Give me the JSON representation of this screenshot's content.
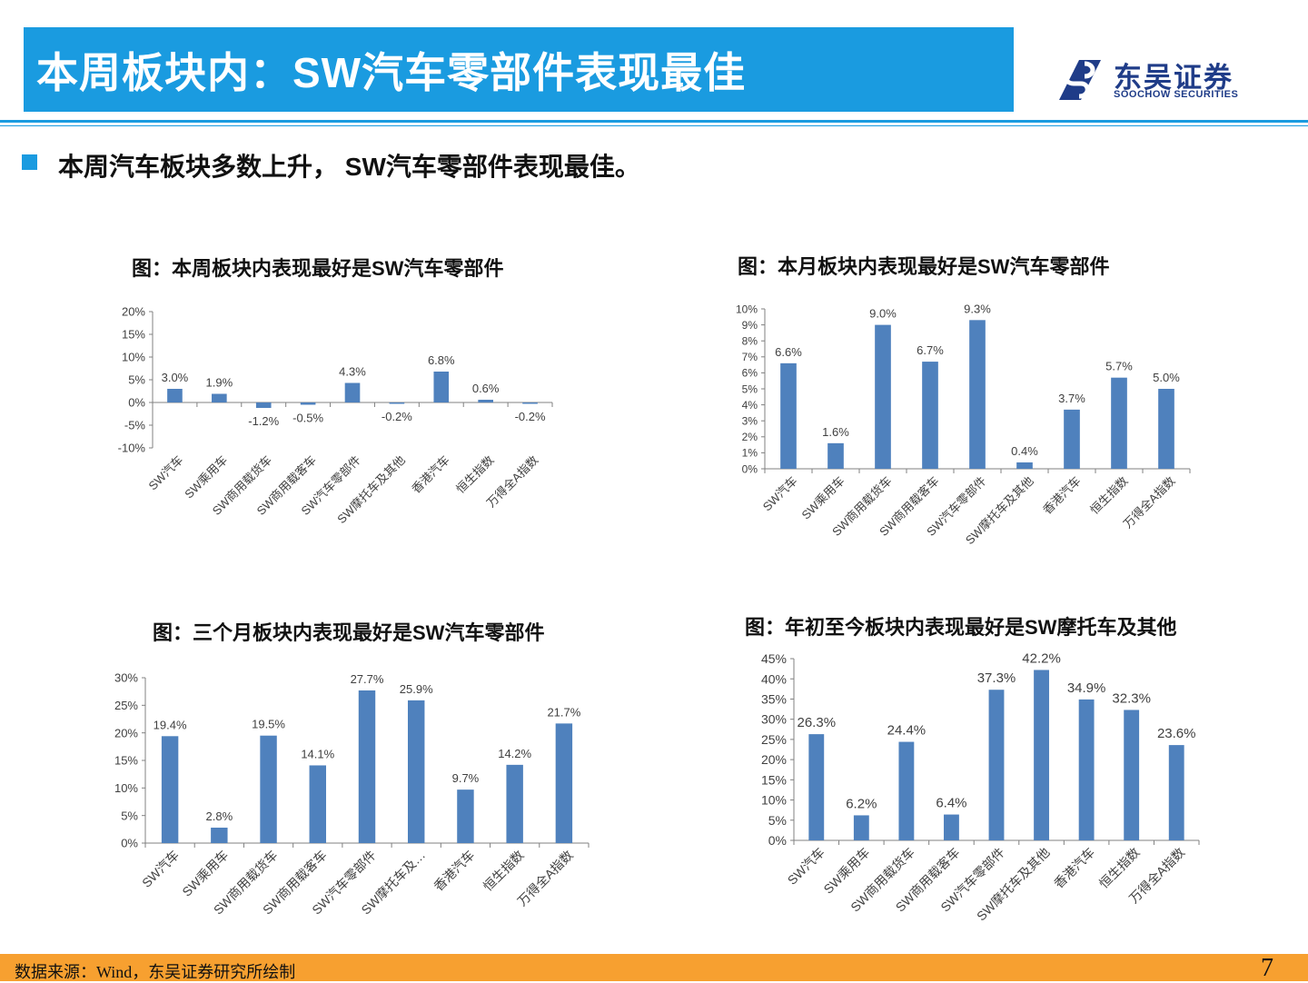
{
  "header": {
    "title": "本周板块内：SW汽车零部件表现最佳"
  },
  "logo": {
    "cn": "东吴证券",
    "en": "SOOCHOW SECURITIES"
  },
  "bullet": "本周汽车板块多数上升， SW汽车零部件表现最佳。",
  "colors": {
    "bar": "#4f81bd",
    "accent": "#1a9be0",
    "footer": "#f7a030"
  },
  "chart_data": [
    {
      "type": "bar",
      "title": "图：本周板块内表现最好是SW汽车零部件",
      "categories": [
        "SW汽车",
        "SW乘用车",
        "SW商用载货车",
        "SW商用载客车",
        "SW汽车零部件",
        "SW摩托车及其他",
        "香港汽车",
        "恒生指数",
        "万得全A指数"
      ],
      "values": [
        3.0,
        1.9,
        -1.2,
        -0.5,
        4.3,
        -0.2,
        6.8,
        0.6,
        -0.2
      ],
      "data_labels": [
        "3.0%",
        "1.9%",
        "-1.2%",
        "-0.5%",
        "4.3%",
        "-0.2%",
        "6.8%",
        "0.6%",
        "-0.2%"
      ],
      "ylim": [
        -10,
        20
      ],
      "yticks": [
        -10,
        -5,
        0,
        5,
        10,
        15,
        20
      ],
      "ytick_labels": [
        "-10%",
        "-5%",
        "0%",
        "5%",
        "10%",
        "15%",
        "20%"
      ]
    },
    {
      "type": "bar",
      "title": "图：本月板块内表现最好是SW汽车零部件",
      "categories": [
        "SW汽车",
        "SW乘用车",
        "SW商用载货车",
        "SW商用载客车",
        "SW汽车零部件",
        "SW摩托车及其他",
        "香港汽车",
        "恒生指数",
        "万得全A指数"
      ],
      "values": [
        6.6,
        1.6,
        9.0,
        6.7,
        9.3,
        0.4,
        3.7,
        5.7,
        5.0
      ],
      "data_labels": [
        "6.6%",
        "1.6%",
        "9.0%",
        "6.7%",
        "9.3%",
        "0.4%",
        "3.7%",
        "5.7%",
        "5.0%"
      ],
      "ylim": [
        0,
        10
      ],
      "yticks": [
        0,
        1,
        2,
        3,
        4,
        5,
        6,
        7,
        8,
        9,
        10
      ],
      "ytick_labels": [
        "0%",
        "1%",
        "2%",
        "3%",
        "4%",
        "5%",
        "6%",
        "7%",
        "8%",
        "9%",
        "10%"
      ]
    },
    {
      "type": "bar",
      "title": "图：三个月板块内表现最好是SW汽车零部件",
      "categories": [
        "SW汽车",
        "SW乘用车",
        "SW商用载货车",
        "SW商用载客车",
        "SW汽车零部件",
        "SW摩托车及…",
        "香港汽车",
        "恒生指数",
        "万得全A指数"
      ],
      "values": [
        19.4,
        2.8,
        19.5,
        14.1,
        27.7,
        25.9,
        9.7,
        14.2,
        21.7
      ],
      "data_labels": [
        "19.4%",
        "2.8%",
        "19.5%",
        "14.1%",
        "27.7%",
        "25.9%",
        "9.7%",
        "14.2%",
        "21.7%"
      ],
      "ylim": [
        0,
        30
      ],
      "yticks": [
        0,
        5,
        10,
        15,
        20,
        25,
        30
      ],
      "ytick_labels": [
        "0%",
        "5%",
        "10%",
        "15%",
        "20%",
        "25%",
        "30%"
      ]
    },
    {
      "type": "bar",
      "title": "图：年初至今板块内表现最好是SW摩托车及其他",
      "categories": [
        "SW汽车",
        "SW乘用车",
        "SW商用载货车",
        "SW商用载客车",
        "SW汽车零部件",
        "SW摩托车及其他",
        "香港汽车",
        "恒生指数",
        "万得全A指数"
      ],
      "values": [
        26.3,
        6.2,
        24.4,
        6.4,
        37.3,
        42.2,
        34.9,
        32.3,
        23.6
      ],
      "data_labels": [
        "26.3%",
        "6.2%",
        "24.4%",
        "6.4%",
        "37.3%",
        "42.2%",
        "34.9%",
        "32.3%",
        "23.6%"
      ],
      "ylim": [
        0,
        45
      ],
      "yticks": [
        0,
        5,
        10,
        15,
        20,
        25,
        30,
        35,
        40,
        45
      ],
      "ytick_labels": [
        "0%",
        "5%",
        "10%",
        "15%",
        "20%",
        "25%",
        "30%",
        "35%",
        "40%",
        "45%"
      ]
    }
  ],
  "footer": {
    "source": "数据来源：Wind，东吴证券研究所绘制",
    "page": "7"
  }
}
